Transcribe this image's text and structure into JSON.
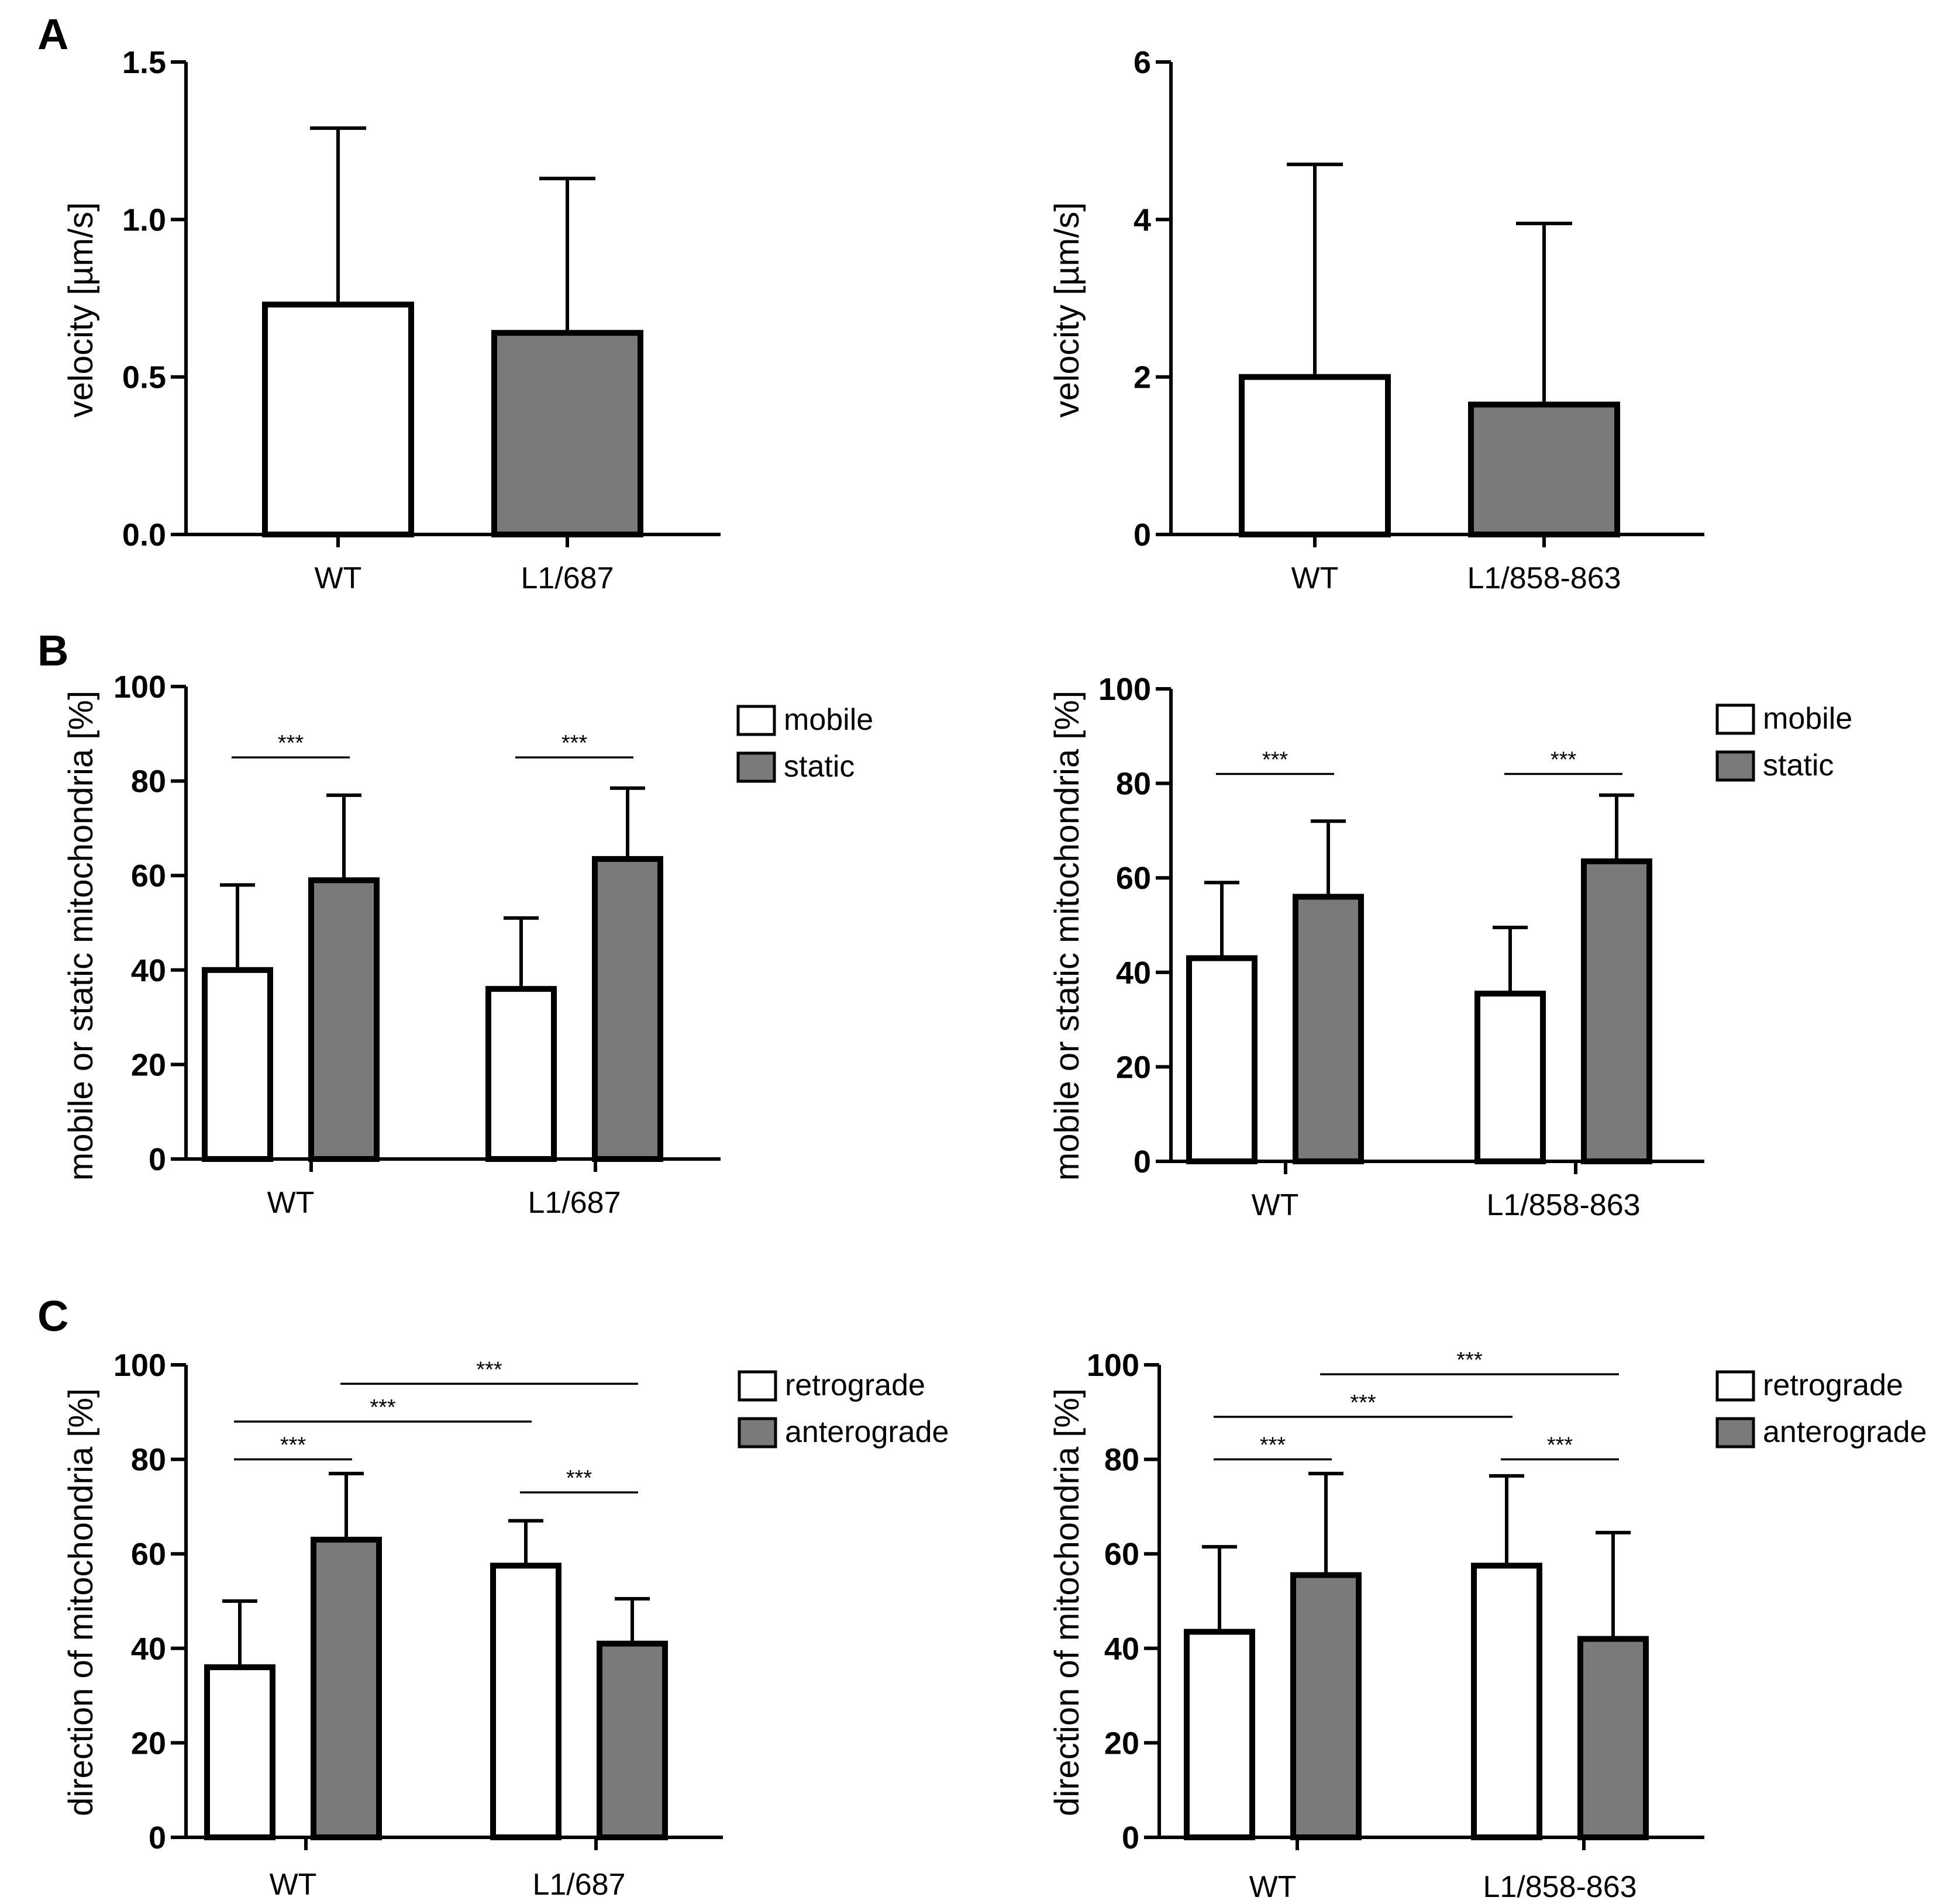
{
  "panels": [
    {
      "letter": "A"
    },
    {
      "letter": "B"
    },
    {
      "letter": "C"
    }
  ],
  "colors": {
    "bar_white": "#ffffff",
    "bar_gray": "#7a7a7a",
    "stroke": "#000000"
  },
  "chart_data": [
    {
      "id": "A-left",
      "type": "bar",
      "ylabel": "velocity [µm/s]",
      "ylim": [
        0,
        1.5
      ],
      "yticks": [
        0.0,
        0.5,
        1.0,
        1.5
      ],
      "ytick_labels": [
        "0.0",
        "0.5",
        "1.0",
        "1.5"
      ],
      "categories": [
        "WT",
        "L1/687"
      ],
      "series": [
        {
          "name": "",
          "values": [
            0.73,
            0.64
          ],
          "errors": [
            0.56,
            0.49
          ],
          "colors": [
            "white",
            "gray"
          ]
        }
      ]
    },
    {
      "id": "A-right",
      "type": "bar",
      "ylabel": "velocity [µm/s]",
      "ylim": [
        0,
        6
      ],
      "yticks": [
        0,
        2,
        4,
        6
      ],
      "ytick_labels": [
        "0",
        "2",
        "4",
        "6"
      ],
      "categories": [
        "WT",
        "L1/858-863"
      ],
      "series": [
        {
          "name": "",
          "values": [
            2.0,
            1.65
          ],
          "errors": [
            2.7,
            2.3
          ],
          "colors": [
            "white",
            "gray"
          ]
        }
      ]
    },
    {
      "id": "B-left",
      "type": "bar",
      "ylabel": "mobile or static mitochondria [%]",
      "ylim": [
        0,
        100
      ],
      "yticks": [
        0,
        20,
        40,
        60,
        80,
        100
      ],
      "ytick_labels": [
        "0",
        "20",
        "40",
        "60",
        "80",
        "100"
      ],
      "categories": [
        "WT",
        "L1/687"
      ],
      "legend": [
        "mobile",
        "static"
      ],
      "series": [
        {
          "name": "mobile",
          "values": [
            40,
            36
          ],
          "errors": [
            18,
            15
          ]
        },
        {
          "name": "static",
          "values": [
            59,
            63.5
          ],
          "errors": [
            18,
            15
          ]
        }
      ],
      "significance": [
        {
          "label": "***",
          "from": [
            0,
            0
          ],
          "to": [
            0,
            1
          ],
          "y": 85
        },
        {
          "label": "***",
          "from": [
            1,
            0
          ],
          "to": [
            1,
            1
          ],
          "y": 85
        }
      ]
    },
    {
      "id": "B-right",
      "type": "bar",
      "ylabel": "mobile or static mitochondria [%]",
      "ylim": [
        0,
        100
      ],
      "yticks": [
        0,
        20,
        40,
        60,
        80,
        100
      ],
      "ytick_labels": [
        "0",
        "20",
        "40",
        "60",
        "80",
        "100"
      ],
      "categories": [
        "WT",
        "L1/858-863"
      ],
      "legend": [
        "mobile",
        "static"
      ],
      "series": [
        {
          "name": "mobile",
          "values": [
            43,
            35.5
          ],
          "errors": [
            16,
            14
          ]
        },
        {
          "name": "static",
          "values": [
            56,
            63.5
          ],
          "errors": [
            16,
            14
          ]
        }
      ],
      "significance": [
        {
          "label": "***",
          "from": [
            0,
            0
          ],
          "to": [
            0,
            1
          ],
          "y": 82
        },
        {
          "label": "***",
          "from": [
            1,
            0
          ],
          "to": [
            1,
            1
          ],
          "y": 82
        }
      ]
    },
    {
      "id": "C-left",
      "type": "bar",
      "ylabel": "direction of mitochondria [%]",
      "ylim": [
        0,
        100
      ],
      "yticks": [
        0,
        20,
        40,
        60,
        80,
        100
      ],
      "ytick_labels": [
        "0",
        "20",
        "40",
        "60",
        "80",
        "100"
      ],
      "categories": [
        "WT",
        "L1/687"
      ],
      "legend": [
        "retrograde",
        "anterograde"
      ],
      "series": [
        {
          "name": "retrograde",
          "values": [
            36,
            57.5
          ],
          "errors": [
            14,
            9.5
          ]
        },
        {
          "name": "anterograde",
          "values": [
            63,
            41
          ],
          "errors": [
            14,
            9.5
          ]
        }
      ],
      "significance": [
        {
          "label": "***",
          "from": [
            0,
            0
          ],
          "to": [
            0,
            1
          ],
          "y": 80
        },
        {
          "label": "***",
          "from": [
            0,
            0
          ],
          "to": [
            1,
            0
          ],
          "y": 88
        },
        {
          "label": "***",
          "from": [
            0,
            1
          ],
          "to": [
            1,
            1
          ],
          "y": 96
        },
        {
          "label": "***",
          "from": [
            1,
            0
          ],
          "to": [
            1,
            1
          ],
          "y": 73
        }
      ]
    },
    {
      "id": "C-right",
      "type": "bar",
      "ylabel": "direction of mitochondria [%]",
      "ylim": [
        0,
        100
      ],
      "yticks": [
        0,
        20,
        40,
        60,
        80,
        100
      ],
      "ytick_labels": [
        "0",
        "20",
        "40",
        "60",
        "80",
        "100"
      ],
      "categories": [
        "WT",
        "L1/858-863"
      ],
      "legend": [
        "retrograde",
        "anterograde"
      ],
      "series": [
        {
          "name": "retrograde",
          "values": [
            43.5,
            57.5
          ],
          "errors": [
            18,
            19
          ]
        },
        {
          "name": "anterograde",
          "values": [
            55.5,
            42
          ],
          "errors": [
            21.5,
            22.5
          ]
        }
      ],
      "significance": [
        {
          "label": "***",
          "from": [
            0,
            0
          ],
          "to": [
            0,
            1
          ],
          "y": 80
        },
        {
          "label": "***",
          "from": [
            0,
            0
          ],
          "to": [
            1,
            0
          ],
          "y": 89
        },
        {
          "label": "***",
          "from": [
            0,
            1
          ],
          "to": [
            1,
            1
          ],
          "y": 98
        },
        {
          "label": "***",
          "from": [
            1,
            0
          ],
          "to": [
            1,
            1
          ],
          "y": 80
        }
      ]
    }
  ]
}
